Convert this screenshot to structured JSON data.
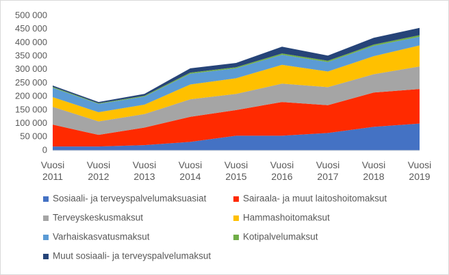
{
  "chart_data": {
    "type": "stacked_area",
    "categories": [
      "Vuosi 2011",
      "Vuosi 2012",
      "Vuosi 2013",
      "Vuosi 2014",
      "Vuosi 2015",
      "Vuosi 2016",
      "Vuosi 2017",
      "Vuosi 2018",
      "Vuosi 2019"
    ],
    "series": [
      {
        "name": "Sosiaali- ja terveyspalvelumaksuasiat",
        "color": "#4472c4",
        "values": [
          15000,
          15000,
          20000,
          32000,
          55000,
          55000,
          65000,
          88000,
          100000
        ]
      },
      {
        "name": "Sairaala- ja muut laitoshoitomaksut",
        "color": "#ff2a00",
        "values": [
          81000,
          43000,
          65000,
          93000,
          95000,
          125000,
          103000,
          127000,
          128000
        ]
      },
      {
        "name": "Terveyskeskusmaksut",
        "color": "#a5a5a5",
        "values": [
          66000,
          50000,
          50000,
          65000,
          60000,
          68000,
          67000,
          68000,
          84000
        ]
      },
      {
        "name": "Hammashoitomaksut",
        "color": "#ffc000",
        "values": [
          36000,
          34000,
          35000,
          55000,
          58000,
          70000,
          58000,
          67000,
          78000
        ]
      },
      {
        "name": "Varhaiskasvatusmaksut",
        "color": "#5b9bd5",
        "values": [
          35000,
          31000,
          30000,
          40000,
          37000,
          37000,
          35000,
          38000,
          32000
        ]
      },
      {
        "name": "Kotipalvelumaksut",
        "color": "#70ad47",
        "values": [
          3000,
          2000,
          3000,
          4000,
          4000,
          5000,
          5000,
          5000,
          6000
        ]
      },
      {
        "name": "Muut sosiaali- ja terveyspalvelumaksut",
        "color": "#264478",
        "values": [
          5000,
          5000,
          7000,
          16000,
          16000,
          25000,
          19000,
          25000,
          27000
        ]
      }
    ],
    "ylim": [
      0,
      500000
    ],
    "yticks": [
      {
        "value": 0,
        "label": "0"
      },
      {
        "value": 50000,
        "label": "50 000"
      },
      {
        "value": 100000,
        "label": "100 000"
      },
      {
        "value": 150000,
        "label": "150 000"
      },
      {
        "value": 200000,
        "label": "200 000"
      },
      {
        "value": 250000,
        "label": "250 000"
      },
      {
        "value": 300000,
        "label": "300 000"
      },
      {
        "value": 350000,
        "label": "350 000"
      },
      {
        "value": 400000,
        "label": "400 000"
      },
      {
        "value": 450000,
        "label": "450 000"
      },
      {
        "value": 500000,
        "label": "500 000"
      }
    ],
    "grid": false
  }
}
